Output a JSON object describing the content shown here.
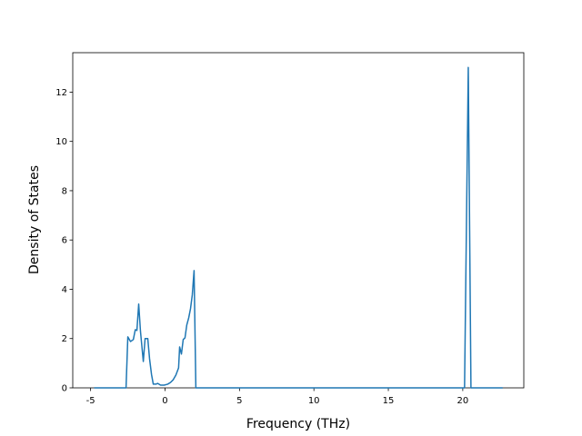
{
  "chart_data": {
    "type": "line",
    "x_label": "Frequency (THz)",
    "y_label": "Density of States",
    "xlim": [
      -6.2,
      24.1
    ],
    "ylim": [
      0,
      13.6
    ],
    "xticks": [
      -5,
      0,
      5,
      10,
      15,
      20
    ],
    "yticks": [
      0,
      2,
      4,
      6,
      8,
      10,
      12
    ],
    "series": [
      {
        "color": "#1f77b4",
        "x": [
          -4.76,
          -2.62,
          -2.5,
          -2.32,
          -2.13,
          -2.0,
          -1.89,
          -1.77,
          -1.65,
          -1.46,
          -1.34,
          -1.16,
          -1.04,
          -0.91,
          -0.79,
          -0.61,
          -0.49,
          -0.3,
          -0.06,
          0.18,
          0.37,
          0.55,
          0.73,
          0.91,
          0.98,
          1.1,
          1.22,
          1.34,
          1.46,
          1.59,
          1.71,
          1.83,
          1.95,
          2.07,
          20.12,
          20.37,
          20.55,
          22.68
        ],
        "values": [
          0,
          0,
          2.07,
          1.88,
          1.96,
          2.36,
          2.33,
          3.4,
          2.29,
          1.07,
          2.0,
          2.0,
          1.18,
          0.55,
          0.15,
          0.15,
          0.18,
          0.11,
          0.11,
          0.15,
          0.22,
          0.33,
          0.52,
          0.81,
          1.66,
          1.37,
          1.96,
          2.03,
          2.55,
          2.84,
          3.21,
          3.77,
          4.76,
          0,
          0,
          13.0,
          0,
          0
        ]
      }
    ]
  }
}
